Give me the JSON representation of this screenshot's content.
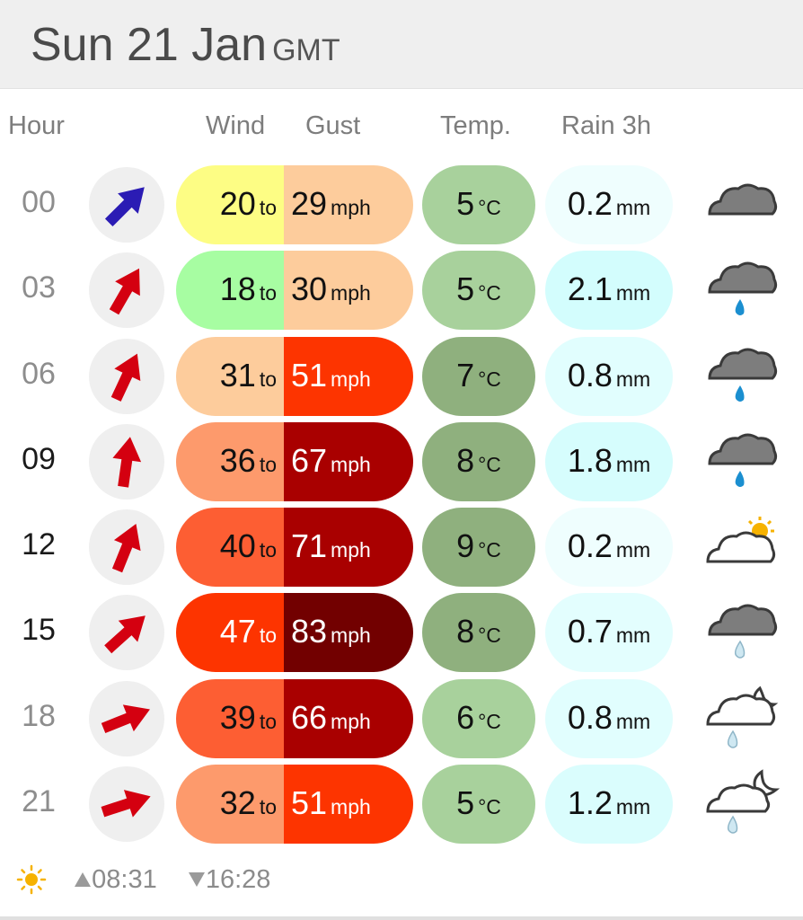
{
  "header": {
    "date": "Sun 21 Jan",
    "timezone": "GMT"
  },
  "columns": {
    "hour": "Hour",
    "wind": "Wind",
    "gust": "Gust",
    "temp": "Temp.",
    "rain": "Rain 3h"
  },
  "units": {
    "to": "to",
    "mph": "mph",
    "celsius": "°C",
    "mm": "mm"
  },
  "rows": [
    {
      "hour": "00",
      "wind": "20",
      "gust": "29",
      "temp": "5",
      "rain": "0.2",
      "arrow_icon": "arrow-northeast-icon",
      "weather_icon": "cloud-icon"
    },
    {
      "hour": "03",
      "wind": "18",
      "gust": "30",
      "temp": "5",
      "rain": "2.1",
      "arrow_icon": "arrow-north-northeast-icon",
      "weather_icon": "cloud-rain-icon"
    },
    {
      "hour": "06",
      "wind": "31",
      "gust": "51",
      "temp": "7",
      "rain": "0.8",
      "arrow_icon": "arrow-north-northeast-icon",
      "weather_icon": "cloud-rain-icon"
    },
    {
      "hour": "09",
      "wind": "36",
      "gust": "67",
      "temp": "8",
      "rain": "1.8",
      "arrow_icon": "arrow-north-icon",
      "weather_icon": "cloud-rain-icon"
    },
    {
      "hour": "12",
      "wind": "40",
      "gust": "71",
      "temp": "9",
      "rain": "0.2",
      "arrow_icon": "arrow-north-northeast-icon",
      "weather_icon": "cloud-sun-icon"
    },
    {
      "hour": "15",
      "wind": "47",
      "gust": "83",
      "temp": "8",
      "rain": "0.7",
      "arrow_icon": "arrow-northeast-icon",
      "weather_icon": "cloud-light-rain-icon"
    },
    {
      "hour": "18",
      "wind": "39",
      "gust": "66",
      "temp": "6",
      "rain": "0.8",
      "arrow_icon": "arrow-east-northeast-icon",
      "weather_icon": "cloud-moon-rain-icon"
    },
    {
      "hour": "21",
      "wind": "32",
      "gust": "51",
      "temp": "5",
      "rain": "1.2",
      "arrow_icon": "arrow-east-northeast-icon",
      "weather_icon": "moon-cloud-rain-icon"
    }
  ],
  "footer": {
    "sunrise": "08:31",
    "sunset": "16:28"
  },
  "colors": {
    "wind_bg": [
      "#fdfd84",
      "#a7fda2",
      "#fdcc9c",
      "#fd9a6c",
      "#fd5e33",
      "#fd3400",
      "#fd5e33",
      "#fd9a6c"
    ],
    "gust_bg": [
      "#fdcc9c",
      "#fdcc9c",
      "#fd3400",
      "#a90000",
      "#a90000",
      "#720000",
      "#a90000",
      "#fd3400"
    ],
    "temp_bg": [
      "#a8d19c",
      "#a8d19c",
      "#8fb07e",
      "#8fb07e",
      "#8fb07e",
      "#8fb07e",
      "#a8d19c",
      "#a8d19c"
    ],
    "rain_bg": [
      "#effefe",
      "#d3fdfd",
      "#e1fefe",
      "#d6fdfd",
      "#effefe",
      "#e3fefe",
      "#e1fefe",
      "#dafdfd"
    ],
    "arrow_primary": "#2b1cb4",
    "arrow_alert": "#d40010",
    "sun": "#f6b200"
  }
}
